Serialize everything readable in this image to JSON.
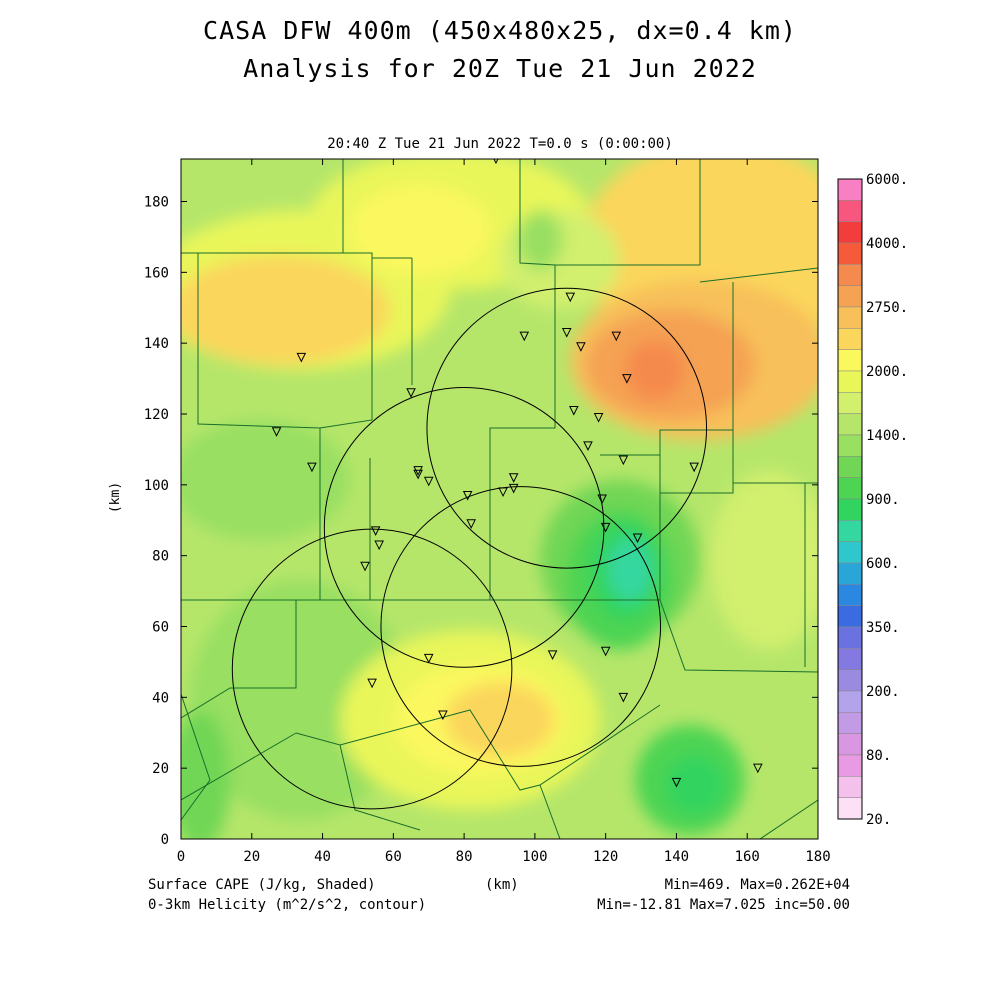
{
  "header": {
    "title_line1": "CASA DFW 400m (450x480x25, dx=0.4 km)",
    "title_line2": "Analysis for 20Z Tue 21 Jun 2022",
    "subtitle": "20:40 Z Tue 21 Jun 2022    T=0.0 s (0:00:00)"
  },
  "axes": {
    "x_label": "(km)",
    "y_label": "(km)",
    "x_ticks": [
      "0",
      "20",
      "40",
      "60",
      "80",
      "100",
      "120",
      "140",
      "160",
      "180"
    ],
    "y_ticks": [
      "0",
      "20",
      "40",
      "60",
      "80",
      "100",
      "120",
      "140",
      "160",
      "180"
    ],
    "x_range": [
      0,
      180
    ],
    "y_range": [
      0,
      192
    ]
  },
  "footer": {
    "field1": "Surface CAPE (J/kg, Shaded)",
    "field2": "0-3km Helicity (m^2/s^2, contour)",
    "stats1": "Min=469. Max=0.262E+04",
    "stats2": "Min=-12.81 Max=7.025 inc=50.00"
  },
  "colorbar": {
    "labels": [
      "6000.",
      "4000.",
      "2750.",
      "2000.",
      "1400.",
      "900.",
      "600.",
      "350.",
      "200.",
      "80.",
      "20."
    ],
    "colors": [
      "#f97fc4",
      "#f7577f",
      "#f33d3d",
      "#f55a3a",
      "#f58a4e",
      "#f5a252",
      "#f8c05a",
      "#fbd65c",
      "#fbf85e",
      "#e9f65a",
      "#d2ef6e",
      "#b5e66a",
      "#98df62",
      "#71d655",
      "#4dd452",
      "#30d45e",
      "#34d7a0",
      "#2ec8cc",
      "#2aa5d8",
      "#2b88e0",
      "#3b6be0",
      "#6a72e0",
      "#8479e0",
      "#9a8ae0",
      "#b3a3ea",
      "#c39ae6",
      "#d897e0",
      "#e89ae2",
      "#f4c0ec",
      "#fbe0f6"
    ]
  },
  "chart_data": {
    "type": "heatmap",
    "cape_regions": [
      {
        "level": "1400-2000",
        "cx": 92,
        "cy": 30,
        "rx": 30,
        "ry": 14
      },
      {
        "level": "2000-2750",
        "cx": 132,
        "cy": 136,
        "rx": 26,
        "ry": 16
      },
      {
        "level": "600-900",
        "cx": 128,
        "cy": 80,
        "rx": 16,
        "ry": 22
      },
      {
        "level": "600-900",
        "cx": 144,
        "cy": 16,
        "rx": 16,
        "ry": 16
      }
    ],
    "radar_circles": [
      {
        "cx": 109,
        "cy": 116,
        "r": 39.5
      },
      {
        "cx": 80,
        "cy": 88,
        "r": 39.5
      },
      {
        "cx": 96,
        "cy": 60,
        "r": 39.5
      },
      {
        "cx": 54,
        "cy": 48,
        "r": 39.5
      }
    ],
    "stations": [
      [
        89,
        192
      ],
      [
        110,
        153
      ],
      [
        97,
        142
      ],
      [
        109,
        143
      ],
      [
        113,
        139
      ],
      [
        123,
        142
      ],
      [
        126,
        130
      ],
      [
        34,
        136
      ],
      [
        65,
        126
      ],
      [
        111,
        121
      ],
      [
        118,
        119
      ],
      [
        27,
        115
      ],
      [
        37,
        105
      ],
      [
        115,
        111
      ],
      [
        125,
        107
      ],
      [
        145,
        105
      ],
      [
        67,
        104
      ],
      [
        67,
        103
      ],
      [
        70,
        101
      ],
      [
        94,
        102
      ],
      [
        94,
        99
      ],
      [
        91,
        98
      ],
      [
        81,
        97
      ],
      [
        119,
        96
      ],
      [
        82,
        89
      ],
      [
        120,
        88
      ],
      [
        129,
        85
      ],
      [
        55,
        87
      ],
      [
        56,
        83
      ],
      [
        52,
        77
      ],
      [
        70,
        51
      ],
      [
        120,
        53
      ],
      [
        105,
        52
      ],
      [
        54,
        44
      ],
      [
        125,
        40
      ],
      [
        74,
        35
      ],
      [
        140,
        16
      ],
      [
        163,
        20
      ]
    ]
  }
}
